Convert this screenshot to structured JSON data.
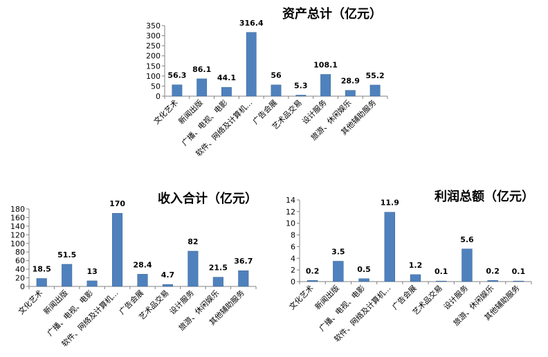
{
  "chart_data": [
    {
      "id": "assets",
      "type": "bar",
      "title": "资产总计（亿元）",
      "categories": [
        "文化艺术",
        "新闻出版",
        "广播、电视、电影",
        "软件、网络及计算机…",
        "广告会展",
        "艺术品交易",
        "设计服务",
        "旅游、休闲娱乐",
        "其他辅助服务"
      ],
      "values": [
        56.3,
        86.1,
        44.1,
        316.4,
        56,
        5.3,
        108.1,
        28.9,
        55.2
      ],
      "value_labels": [
        "56.3",
        "86.1",
        "44.1",
        "316.4",
        "56",
        "5.3",
        "108.1",
        "28.9",
        "55.2"
      ],
      "ylim": [
        0,
        350
      ],
      "yticks": [
        "0",
        "50",
        "100",
        "150",
        "200",
        "250",
        "300",
        "350"
      ],
      "xlabel": "",
      "ylabel": "",
      "grid": false,
      "bar_color": "#4f81bd"
    },
    {
      "id": "revenue",
      "type": "bar",
      "title": "收入合计（亿元）",
      "categories": [
        "文化艺术",
        "新闻出版",
        "广播、电视、电影",
        "软件、网络及计算机…",
        "广告会展",
        "艺术品交易",
        "设计服务",
        "旅游、休闲娱乐",
        "其他辅助服务"
      ],
      "values": [
        18.5,
        51.5,
        13,
        170,
        28.4,
        4.7,
        82,
        21.5,
        36.7
      ],
      "value_labels": [
        "18.5",
        "51.5",
        "13",
        "170",
        "28.4",
        "4.7",
        "82",
        "21.5",
        "36.7"
      ],
      "ylim": [
        0,
        180
      ],
      "yticks": [
        "0",
        "20",
        "40",
        "60",
        "80",
        "100",
        "120",
        "140",
        "160",
        "180"
      ],
      "xlabel": "",
      "ylabel": "",
      "grid": false,
      "bar_color": "#4f81bd"
    },
    {
      "id": "profit",
      "type": "bar",
      "title": "利润总额（亿元）",
      "categories": [
        "文化艺术",
        "新闻出版",
        "广播、电视、电影",
        "软件、网络及计算机…",
        "广告会展",
        "艺术品交易",
        "设计服务",
        "旅游、休闲娱乐",
        "其他辅助服务"
      ],
      "values": [
        0.2,
        3.5,
        0.5,
        11.9,
        1.2,
        0.1,
        5.6,
        0.2,
        0.1
      ],
      "value_labels": [
        "0.2",
        "3.5",
        "0.5",
        "11.9",
        "1.2",
        "0.1",
        "5.6",
        "0.2",
        "0.1"
      ],
      "ylim": [
        0,
        14
      ],
      "yticks": [
        "0",
        "2",
        "4",
        "6",
        "8",
        "10",
        "12",
        "14"
      ],
      "xlabel": "",
      "ylabel": "",
      "grid": false,
      "bar_color": "#4f81bd"
    }
  ]
}
